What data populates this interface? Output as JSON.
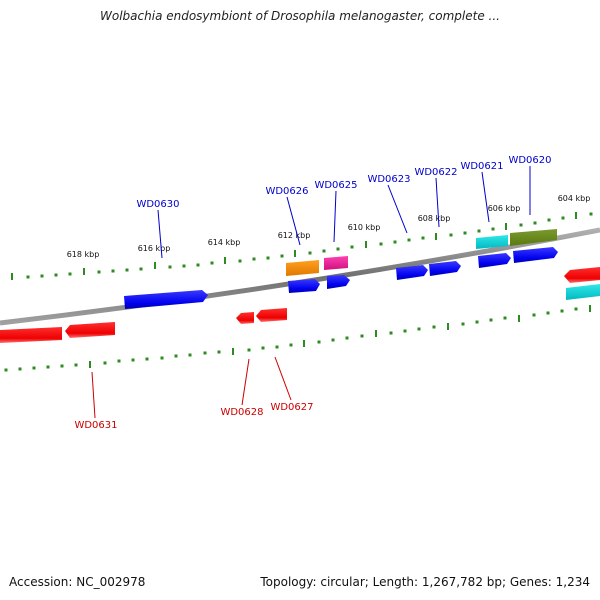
{
  "title": "Wolbachia endosymbiont of Drosophila melanogaster, complete ...",
  "footer": {
    "accession": "Accession: NC_002978",
    "summary": "Topology: circular; Length: 1,267,782 bp; Genes: 1,234"
  },
  "colors": {
    "background": "#ffffff",
    "backbone": "#8a8a8a",
    "tick": "#2e8b22",
    "forward_label": "#0000cc",
    "reverse_label": "#cc0000"
  },
  "scale_labels": [
    "618 kbp",
    "616 kbp",
    "614 kbp",
    "612 kbp",
    "610 kbp",
    "608 kbp",
    "606 kbp",
    "604 kbp"
  ],
  "forward_gene_labels": [
    "WD0630",
    "WD0626",
    "WD0625",
    "WD0623",
    "WD0622",
    "WD0621",
    "WD0620"
  ],
  "reverse_gene_labels": [
    "WD0631",
    "WD0628",
    "WD0627"
  ],
  "feature_colors": [
    "blue",
    "red",
    "orange",
    "magenta",
    "cyan",
    "olive-green"
  ]
}
